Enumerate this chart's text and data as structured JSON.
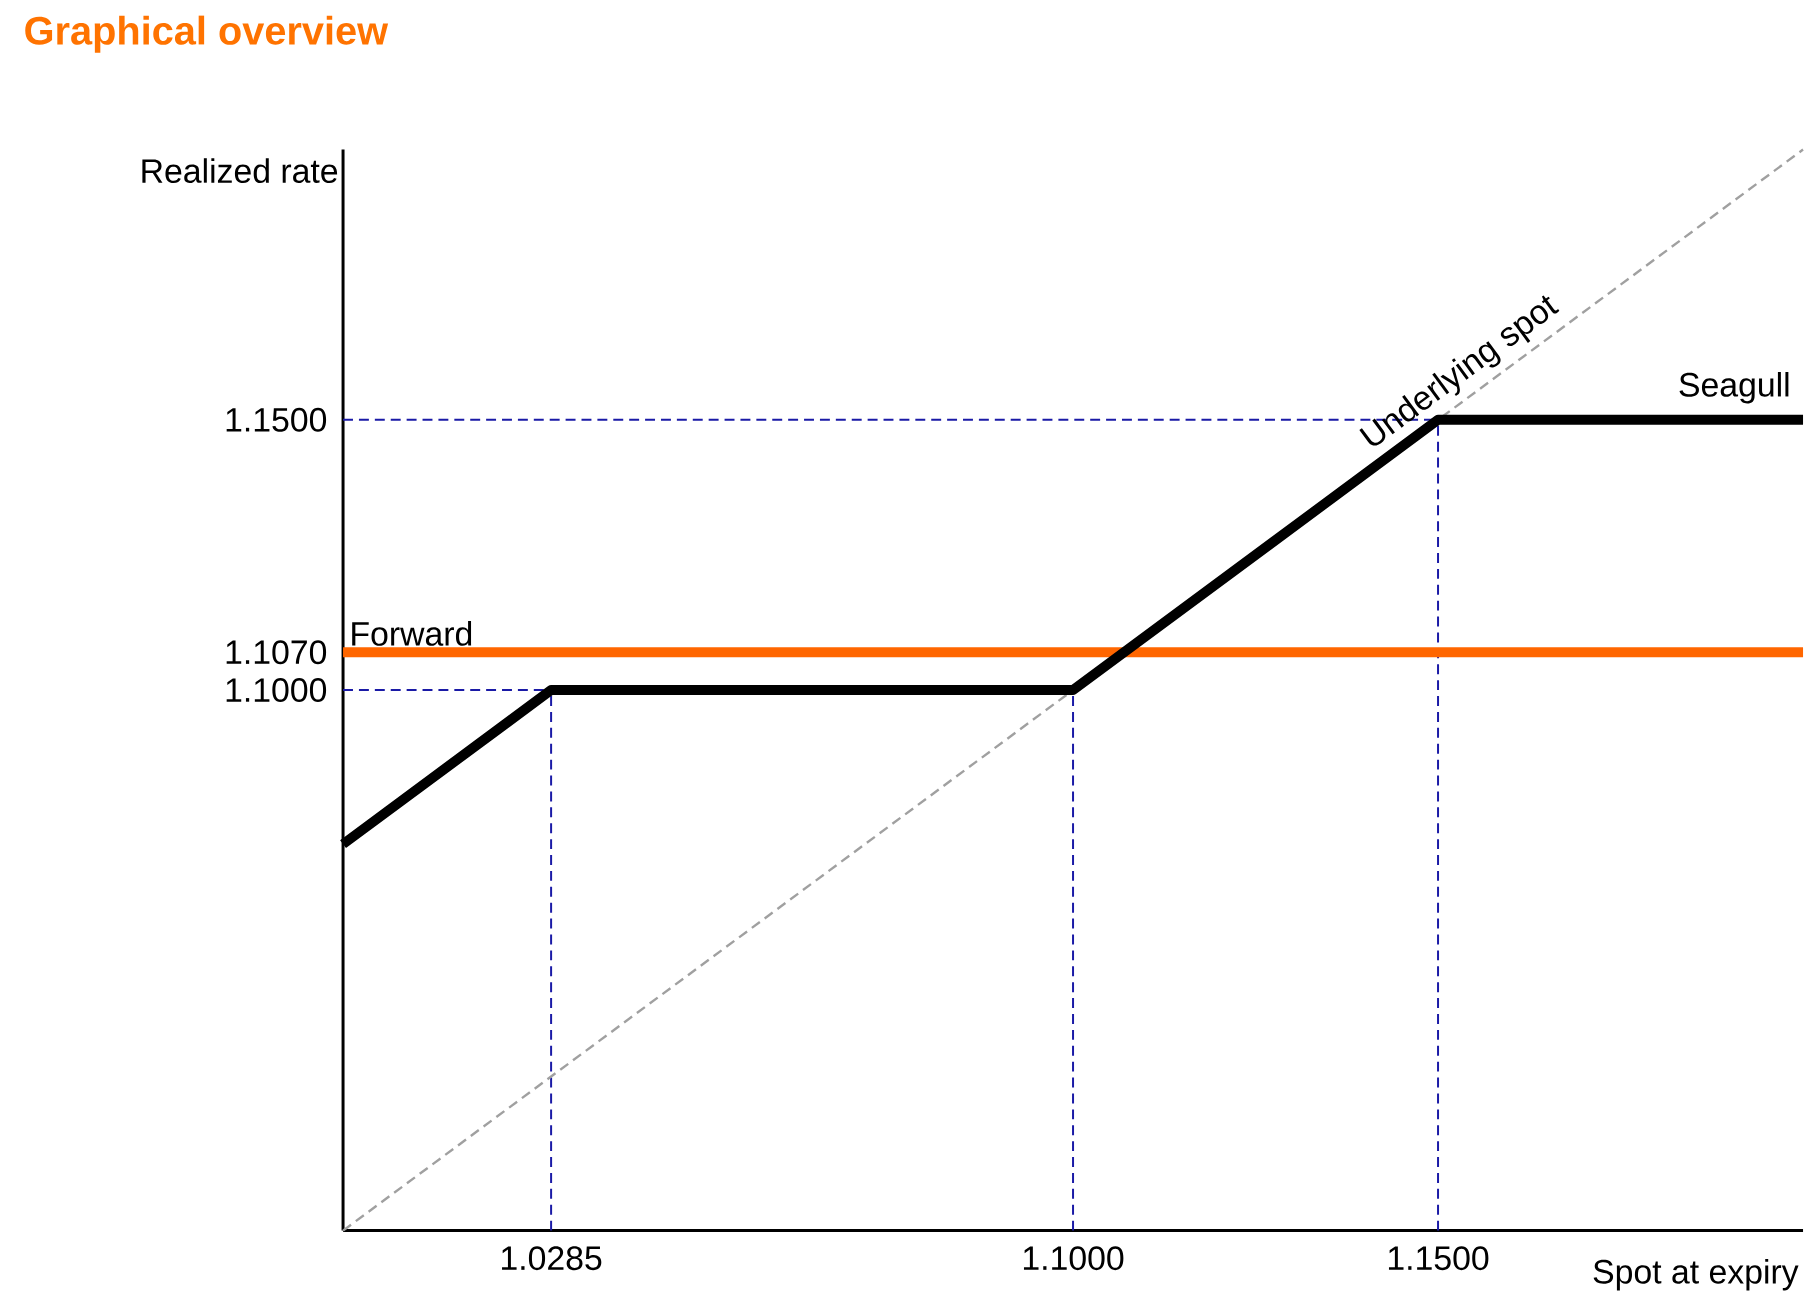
{
  "chart_data": {
    "type": "line",
    "title": "Graphical overview",
    "xlabel": "Spot at expiry",
    "ylabel": "Realized rate",
    "xlim": [
      1.0,
      1.2
    ],
    "ylim": [
      1.0,
      1.2
    ],
    "xticks": [
      {
        "value": 1.0285,
        "label": "1.0285"
      },
      {
        "value": 1.1,
        "label": "1.1000"
      },
      {
        "value": 1.15,
        "label": "1.1500"
      }
    ],
    "yticks": [
      {
        "value": 1.1,
        "label": "1.1000"
      },
      {
        "value": 1.107,
        "label": "1.1070"
      },
      {
        "value": 1.15,
        "label": "1.1500"
      }
    ],
    "series": [
      {
        "name": "Seagull",
        "color": "#000000",
        "x": [
          1.0,
          1.0285,
          1.1,
          1.15,
          1.2
        ],
        "values": [
          1.0715,
          1.1,
          1.1,
          1.15,
          1.15
        ]
      },
      {
        "name": "Forward",
        "color": "#ff6600",
        "x": [
          1.0,
          1.2
        ],
        "values": [
          1.107,
          1.107
        ]
      },
      {
        "color": "#a0a0a0",
        "line_style": "dashed",
        "x": [
          1.0,
          1.2
        ],
        "values": [
          1.0,
          1.2
        ]
      }
    ],
    "ref_lines": [
      {
        "axis": "x",
        "value": 1.0285,
        "color": "#1a1aa6",
        "line_style": "dashed"
      },
      {
        "axis": "x",
        "value": 1.1,
        "color": "#1a1aa6",
        "line_style": "dashed"
      },
      {
        "axis": "x",
        "value": 1.15,
        "color": "#1a1aa6",
        "line_style": "dashed"
      },
      {
        "axis": "y",
        "value": 1.1,
        "color": "#1a1aa6",
        "line_style": "dashed"
      },
      {
        "axis": "y",
        "value": 1.15,
        "color": "#1a1aa6",
        "line_style": "dashed"
      }
    ],
    "annotations": [
      {
        "text": "Underlying spot",
        "x": 1.155,
        "y": 1.155
      }
    ],
    "grid": false,
    "marker": "none"
  }
}
